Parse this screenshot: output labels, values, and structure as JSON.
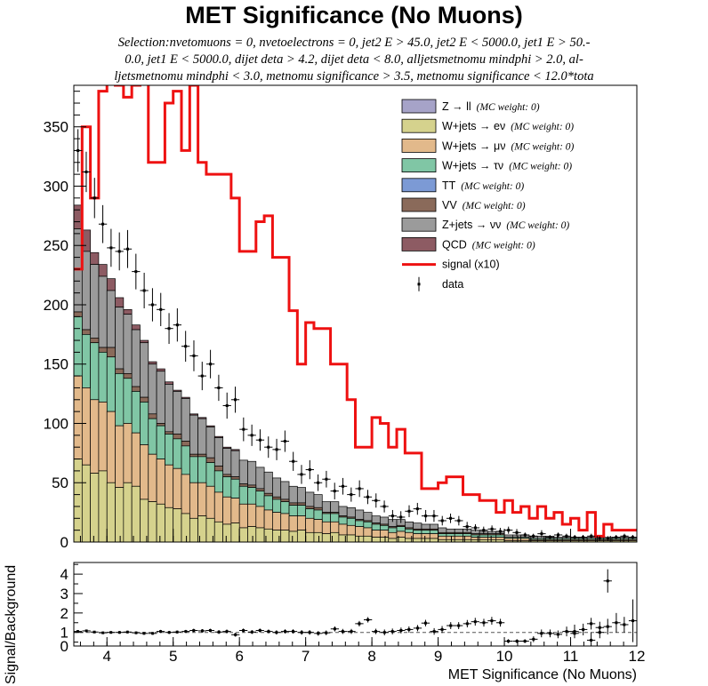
{
  "title": "MET Significance (No Muons)",
  "selection_lines": [
    "Selection:nvetomuons = 0, nvetoelectrons = 0, jet2 E > 45.0, jet2 E < 5000.0, jet1 E > 50.-",
    "0.0, jet1 E < 5000.0, dijet deta > 4.2, dijet deta < 8.0, alljetsmetnomu mindphi > 2.0, al-",
    "ljetsmetnomu mindphi < 3.0, metnomu significance > 3.5, metnomu significance < 12.0*tota"
  ],
  "legend": [
    {
      "label": "Z → ll",
      "note": "(MC weight: 0)",
      "color": "#a6a3c8",
      "kind": "box"
    },
    {
      "label": "W+jets → eν",
      "note": "(MC weight: 0)",
      "color": "#d5d28d",
      "kind": "box"
    },
    {
      "label": "W+jets → μν",
      "note": "(MC weight: 0)",
      "color": "#e2b98b",
      "kind": "box"
    },
    {
      "label": "W+jets → τν",
      "note": "(MC weight: 0)",
      "color": "#80c6a5",
      "kind": "box"
    },
    {
      "label": "TT",
      "note": "(MC weight: 0)",
      "color": "#7c9ad5",
      "kind": "box"
    },
    {
      "label": "VV",
      "note": "(MC weight: 0)",
      "color": "#8a6a5a",
      "kind": "box"
    },
    {
      "label": "Z+jets → νν",
      "note": "(MC weight: 0)",
      "color": "#9b9b9b",
      "kind": "box"
    },
    {
      "label": "QCD",
      "note": "(MC weight: 0)",
      "color": "#8d5b63",
      "kind": "box"
    },
    {
      "label": "signal (x10)",
      "note": "",
      "color": "#ee1111",
      "kind": "line"
    },
    {
      "label": "data",
      "note": "",
      "color": "#000000",
      "kind": "marker"
    }
  ],
  "chart_data": [
    {
      "type": "area",
      "subtype": "stacked-histogram",
      "xlim": [
        3.5,
        12.0
      ],
      "ylim": [
        0,
        385
      ],
      "yticks": [
        0,
        50,
        100,
        150,
        200,
        250,
        300,
        350
      ],
      "bin_width": 0.125,
      "x_start": 3.5,
      "stack_order": [
        "W+jets → eν",
        "W+jets → μν",
        "W+jets → τν",
        "VV",
        "Z+jets → νν",
        "QCD"
      ],
      "series": [
        {
          "name": "W+jets → eν",
          "values": [
            70,
            65,
            58,
            60,
            50,
            46,
            50,
            47,
            36,
            34,
            32,
            29,
            28,
            24,
            20,
            22,
            20,
            17,
            15,
            16,
            12,
            13,
            12,
            11,
            10,
            10,
            9,
            10,
            8,
            8,
            7,
            8,
            6,
            6,
            5,
            5,
            4,
            4,
            3,
            4,
            3,
            3,
            3,
            3,
            2,
            2,
            2,
            2,
            2,
            2,
            2,
            2,
            1,
            1,
            1,
            1,
            1,
            1,
            1,
            1,
            1,
            1,
            1,
            1,
            1,
            1,
            1,
            1
          ]
        },
        {
          "name": "W+jets → μν",
          "values": [
            70,
            65,
            62,
            58,
            60,
            52,
            50,
            45,
            46,
            40,
            38,
            36,
            34,
            33,
            30,
            28,
            27,
            25,
            23,
            21,
            20,
            19,
            18,
            16,
            15,
            14,
            13,
            12,
            12,
            11,
            10,
            9,
            9,
            8,
            8,
            7,
            6,
            6,
            5,
            5,
            5,
            4,
            4,
            4,
            3,
            3,
            3,
            3,
            2,
            2,
            2,
            2,
            2,
            2,
            2,
            1,
            1,
            1,
            1,
            1,
            1,
            1,
            1,
            1,
            1,
            1,
            1,
            1
          ]
        },
        {
          "name": "W+jets → τν",
          "values": [
            50,
            45,
            48,
            42,
            46,
            44,
            38,
            35,
            36,
            30,
            28,
            26,
            25,
            24,
            22,
            22,
            20,
            18,
            17,
            16,
            15,
            14,
            13,
            12,
            11,
            10,
            9,
            9,
            8,
            8,
            7,
            7,
            6,
            6,
            5,
            5,
            5,
            4,
            4,
            4,
            3,
            3,
            3,
            3,
            2,
            2,
            2,
            2,
            2,
            2,
            2,
            2,
            1,
            1,
            1,
            1,
            1,
            1,
            1,
            1,
            1,
            1,
            1,
            1,
            1,
            1,
            1,
            1
          ]
        },
        {
          "name": "VV",
          "values": [
            4,
            4,
            4,
            4,
            8,
            4,
            4,
            4,
            4,
            4,
            2,
            2,
            4,
            4,
            2,
            2,
            4,
            4,
            2,
            2,
            2,
            2,
            2,
            2,
            2,
            2,
            2,
            2,
            2,
            2,
            1,
            1,
            1,
            1,
            1,
            1,
            1,
            1,
            1,
            1,
            1,
            1,
            1,
            1,
            1,
            1,
            1,
            1,
            1,
            1,
            1,
            1,
            0,
            0,
            0,
            0,
            0,
            0,
            0,
            0,
            0,
            0,
            0,
            0,
            0,
            0,
            0,
            0
          ]
        },
        {
          "name": "Z+jets → νν",
          "values": [
            70,
            66,
            62,
            60,
            48,
            52,
            50,
            48,
            46,
            42,
            44,
            40,
            36,
            36,
            33,
            30,
            26,
            24,
            22,
            22,
            20,
            20,
            18,
            18,
            16,
            15,
            14,
            13,
            12,
            11,
            9,
            9,
            8,
            8,
            8,
            7,
            6,
            6,
            6,
            5,
            5,
            5,
            4,
            4,
            4,
            3,
            3,
            3,
            3,
            2,
            2,
            2,
            2,
            2,
            2,
            2,
            2,
            2,
            1,
            1,
            1,
            1,
            1,
            1,
            1,
            1,
            1,
            1
          ]
        },
        {
          "name": "QCD",
          "values": [
            20,
            18,
            10,
            10,
            10,
            8,
            4,
            4,
            2,
            2,
            2,
            2,
            1,
            1,
            1,
            1,
            1,
            1,
            1,
            1,
            0,
            0,
            0,
            0,
            0,
            0,
            0,
            0,
            0,
            0,
            0,
            0,
            0,
            0,
            0,
            0,
            0,
            0,
            0,
            0,
            0,
            0,
            0,
            0,
            0,
            0,
            0,
            0,
            0,
            0,
            0,
            0,
            0,
            0,
            0,
            0,
            0,
            0,
            0,
            0,
            0,
            0,
            0,
            0,
            0,
            0,
            0,
            0
          ]
        }
      ],
      "signal": {
        "name": "signal (x10)",
        "values": [
          230,
          350,
          290,
          380,
          400,
          385,
          375,
          385,
          420,
          320,
          320,
          370,
          380,
          330,
          385,
          320,
          310,
          310,
          310,
          290,
          245,
          245,
          270,
          275,
          240,
          240,
          195,
          150,
          185,
          180,
          180,
          150,
          150,
          120,
          80,
          80,
          105,
          100,
          80,
          95,
          75,
          75,
          45,
          45,
          50,
          55,
          55,
          40,
          40,
          35,
          35,
          25,
          35,
          25,
          30,
          20,
          30,
          20,
          25,
          15,
          20,
          10,
          25,
          5,
          15,
          10,
          10,
          10
        ]
      },
      "data": {
        "name": "data",
        "values": [
          330,
          312,
          290,
          268,
          248,
          245,
          247,
          228,
          212,
          200,
          196,
          180,
          183,
          165,
          157,
          140,
          150,
          130,
          115,
          120,
          95,
          90,
          86,
          80,
          78,
          85,
          68,
          57,
          61,
          50,
          53,
          43,
          47,
          40,
          45,
          38,
          35,
          30,
          22,
          21,
          26,
          28,
          22,
          22,
          18,
          20,
          18,
          13,
          12,
          10,
          11,
          9,
          10,
          8,
          6,
          5,
          7,
          4,
          6,
          5,
          4,
          4,
          5,
          3,
          3,
          4,
          5,
          4
        ],
        "err": [
          18,
          17,
          17,
          16,
          16,
          16,
          16,
          15,
          15,
          14,
          14,
          13,
          14,
          13,
          13,
          12,
          12,
          11,
          11,
          11,
          10,
          9,
          9,
          9,
          9,
          9,
          8,
          8,
          8,
          7,
          7,
          7,
          7,
          6,
          7,
          6,
          6,
          5,
          5,
          5,
          5,
          5,
          5,
          5,
          4,
          4,
          4,
          4,
          3,
          3,
          3,
          3,
          3,
          3,
          2,
          2,
          3,
          2,
          2,
          2,
          2,
          2,
          2,
          2,
          2,
          2,
          2,
          2
        ]
      }
    },
    {
      "type": "scatter",
      "subtype": "ratio-with-errors",
      "xlabel": "MET Significance (No Muons)",
      "ylabel": "Signal/Background",
      "xlim": [
        3.5,
        12.0
      ],
      "ylim": [
        0.3,
        4.6
      ],
      "xticks": [
        4,
        5,
        6,
        7,
        8,
        9,
        10,
        11,
        12
      ],
      "yticks": [
        0,
        1,
        2,
        3,
        4
      ],
      "reference_line": 1,
      "values": [
        1.05,
        1.08,
        1.02,
        0.98,
        1.0,
        1.0,
        1.02,
        0.98,
        0.95,
        0.95,
        1.05,
        1.0,
        1.02,
        1.05,
        1.1,
        1.08,
        1.1,
        1.02,
        1.05,
        0.88,
        1.1,
        1.02,
        1.1,
        1.05,
        1.0,
        1.05,
        1.05,
        1.0,
        1.0,
        0.95,
        0.98,
        1.18,
        1.05,
        1.05,
        1.45,
        1.65,
        1.05,
        1.0,
        1.05,
        1.1,
        1.15,
        1.22,
        1.48,
        1.05,
        1.15,
        1.35,
        1.35,
        1.45,
        1.55,
        1.5,
        1.6,
        1.5,
        0.55,
        0.55,
        0.55,
        0.65,
        0.95,
        0.95,
        0.9,
        1.05,
        0.95,
        1.15,
        1.45,
        1.25,
        1.0,
        1.3,
        0.6,
        1.05,
        3.65,
        1.5,
        1.4,
        1.6
      ],
      "x": [
        3.56,
        3.69,
        3.81,
        3.94,
        4.06,
        4.19,
        4.31,
        4.44,
        4.56,
        4.69,
        4.81,
        4.94,
        5.06,
        5.19,
        5.31,
        5.44,
        5.56,
        5.69,
        5.81,
        5.94,
        6.06,
        6.19,
        6.31,
        6.44,
        6.56,
        6.69,
        6.81,
        6.94,
        7.06,
        7.19,
        7.31,
        7.44,
        7.56,
        7.69,
        7.81,
        7.94,
        8.06,
        8.19,
        8.31,
        8.44,
        8.56,
        8.69,
        8.81,
        8.94,
        9.06,
        9.19,
        9.31,
        9.44,
        9.56,
        9.69,
        9.81,
        9.94,
        10.06,
        10.19,
        10.31,
        10.44,
        10.56,
        10.69,
        10.81,
        10.94,
        11.06,
        11.19,
        11.31,
        11.44,
        11.44,
        11.56,
        11.31,
        11.06,
        11.56,
        11.69,
        11.81,
        11.94
      ],
      "err": [
        0.06,
        0.06,
        0.06,
        0.06,
        0.06,
        0.07,
        0.07,
        0.07,
        0.07,
        0.07,
        0.08,
        0.08,
        0.08,
        0.08,
        0.09,
        0.09,
        0.09,
        0.1,
        0.1,
        0.1,
        0.1,
        0.1,
        0.1,
        0.1,
        0.11,
        0.11,
        0.11,
        0.12,
        0.12,
        0.12,
        0.12,
        0.13,
        0.13,
        0.13,
        0.14,
        0.14,
        0.14,
        0.15,
        0.15,
        0.15,
        0.16,
        0.16,
        0.17,
        0.17,
        0.18,
        0.18,
        0.18,
        0.19,
        0.2,
        0.2,
        0.2,
        0.2,
        0.1,
        0.1,
        0.1,
        0.15,
        0.2,
        0.2,
        0.2,
        0.25,
        0.2,
        0.3,
        0.3,
        0.3,
        0.3,
        0.4,
        0.4,
        0.35,
        0.6,
        0.5,
        0.4,
        1.1
      ]
    }
  ]
}
